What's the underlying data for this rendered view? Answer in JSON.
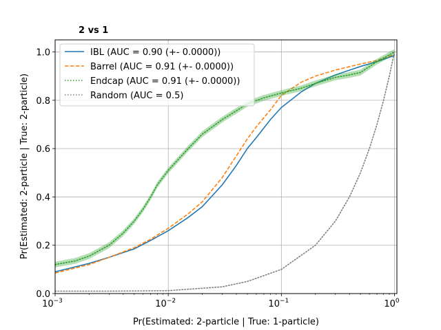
{
  "chart_data": {
    "type": "line",
    "title": "2 vs 1",
    "xlabel": "Pr(Estimated: 2-particle | True: 1-particle)",
    "ylabel": "Pr(Estimated: 2-particle | True: 2-particle)",
    "xscale": "log",
    "xlim": [
      0.001,
      1.05
    ],
    "ylim": [
      0.0,
      1.05
    ],
    "xticks": [
      {
        "value": 0.001,
        "base": "10",
        "exp": "−3"
      },
      {
        "value": 0.01,
        "base": "10",
        "exp": "−2"
      },
      {
        "value": 0.1,
        "base": "10",
        "exp": "−1"
      },
      {
        "value": 1.0,
        "base": "10",
        "exp": "0"
      }
    ],
    "yticks": [
      "0.0",
      "0.2",
      "0.4",
      "0.6",
      "0.8",
      "1.0"
    ],
    "grid": true,
    "legend_position": "upper-left",
    "series": [
      {
        "name": "IBL (AUC = 0.90 (+- 0.0000))",
        "color": "#1f77b4",
        "style": "solid",
        "x": [
          0.001,
          0.002,
          0.003,
          0.005,
          0.007,
          0.01,
          0.015,
          0.02,
          0.03,
          0.04,
          0.05,
          0.06,
          0.08,
          0.1,
          0.15,
          0.2,
          0.3,
          0.5,
          0.7,
          1.0
        ],
        "y": [
          0.09,
          0.125,
          0.15,
          0.185,
          0.22,
          0.26,
          0.315,
          0.36,
          0.45,
          0.53,
          0.6,
          0.645,
          0.72,
          0.77,
          0.835,
          0.87,
          0.905,
          0.94,
          0.96,
          0.985
        ]
      },
      {
        "name": "Barrel (AUC = 0.91 (+- 0.0000))",
        "color": "#ff7f0e",
        "style": "dashed",
        "x": [
          0.001,
          0.002,
          0.003,
          0.005,
          0.007,
          0.01,
          0.015,
          0.02,
          0.03,
          0.04,
          0.05,
          0.06,
          0.08,
          0.1,
          0.15,
          0.2,
          0.3,
          0.5,
          0.7,
          1.0
        ],
        "y": [
          0.085,
          0.12,
          0.15,
          0.19,
          0.225,
          0.27,
          0.33,
          0.38,
          0.48,
          0.57,
          0.64,
          0.69,
          0.76,
          0.82,
          0.875,
          0.9,
          0.925,
          0.95,
          0.965,
          0.99
        ]
      },
      {
        "name": "Endcap (AUC = 0.91 (+- 0.0000))",
        "color": "#2ca02c",
        "style": "dotted",
        "x": [
          0.001,
          0.0015,
          0.002,
          0.003,
          0.004,
          0.005,
          0.006,
          0.007,
          0.008,
          0.01,
          0.015,
          0.02,
          0.03,
          0.05,
          0.07,
          0.1,
          0.15,
          0.2,
          0.3,
          0.4,
          0.5,
          0.7,
          1.0
        ],
        "y": [
          0.12,
          0.135,
          0.155,
          0.2,
          0.25,
          0.3,
          0.35,
          0.4,
          0.45,
          0.51,
          0.6,
          0.66,
          0.72,
          0.785,
          0.81,
          0.83,
          0.85,
          0.87,
          0.895,
          0.905,
          0.915,
          0.96,
          1.0
        ],
        "band": 0.012
      },
      {
        "name": "Random (AUC = 0.5)",
        "color": "#7f7f7f",
        "style": "dotted",
        "x": [
          0.001,
          0.003,
          0.01,
          0.03,
          0.05,
          0.1,
          0.2,
          0.3,
          0.4,
          0.5,
          0.6,
          0.7,
          0.8,
          0.9,
          1.0
        ],
        "y": [
          0.01,
          0.01,
          0.012,
          0.028,
          0.05,
          0.1,
          0.2,
          0.3,
          0.4,
          0.5,
          0.6,
          0.7,
          0.8,
          0.9,
          1.0
        ]
      }
    ]
  }
}
